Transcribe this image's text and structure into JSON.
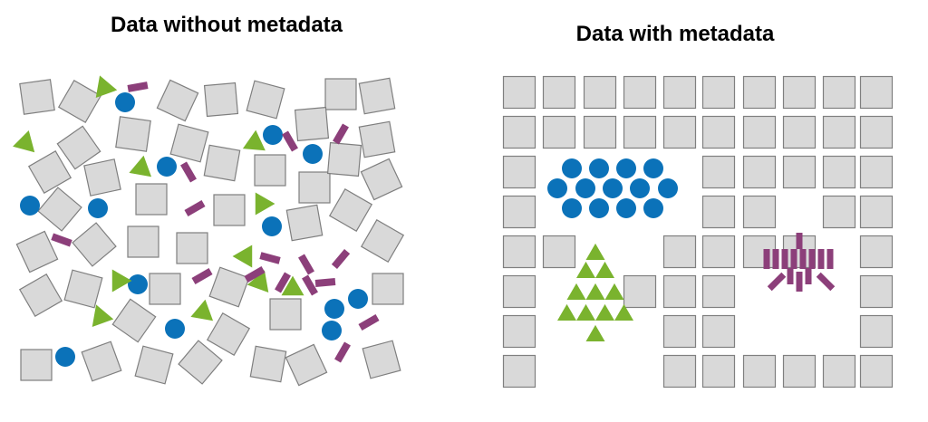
{
  "panels": {
    "left": {
      "title": "Data without metadata"
    },
    "right": {
      "title": "Data with metadata"
    }
  },
  "palette": {
    "square_fill": "#d9d9d9",
    "square_stroke": "#7f7f7f",
    "circle_fill": "#0b72b9",
    "triangle_fill": "#7ab32e",
    "bar_fill": "#8c3f7a",
    "background": "#ffffff"
  },
  "shape_types": [
    "square-icon",
    "circle-icon",
    "triangle-icon",
    "bar-icon"
  ]
}
